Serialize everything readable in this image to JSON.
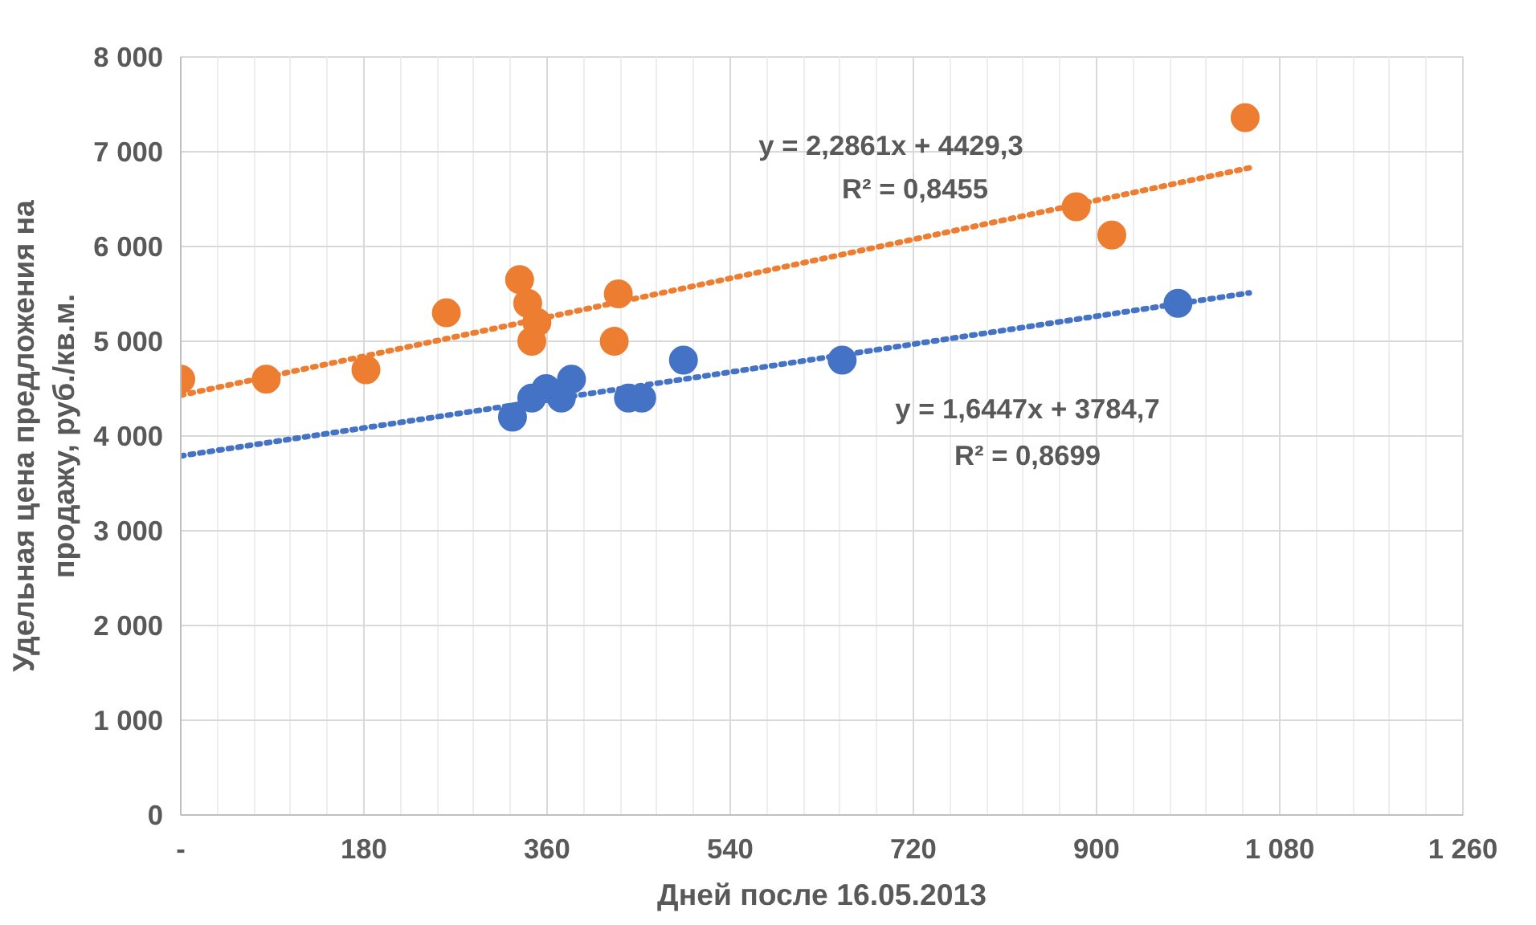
{
  "chart_data": {
    "type": "scatter",
    "xlabel": "Дней после 16.05.2013",
    "ylabel": "Удельная цена предложения на\nпродажу, руб./кв.м.",
    "xlim": [
      0,
      1260
    ],
    "ylim": [
      0,
      8000
    ],
    "xticks": [
      {
        "value": 0,
        "label": "-"
      },
      180,
      360,
      540,
      720,
      900,
      {
        "value": 1080,
        "label": "1 080"
      },
      {
        "value": 1260,
        "label": "1 260"
      }
    ],
    "yticks": [
      0,
      {
        "value": 1000,
        "label": "1 000"
      },
      {
        "value": 2000,
        "label": "2 000"
      },
      {
        "value": 3000,
        "label": "3 000"
      },
      {
        "value": 4000,
        "label": "4 000"
      },
      {
        "value": 5000,
        "label": "5 000"
      },
      {
        "value": 6000,
        "label": "6 000"
      },
      {
        "value": 7000,
        "label": "7 000"
      },
      {
        "value": 8000,
        "label": "8 000"
      }
    ],
    "grid": true,
    "marker": "circle",
    "series": [
      {
        "color": "#ed7d31",
        "x": [
          0,
          84,
          182,
          261,
          333,
          341,
          350,
          345,
          430,
          426,
          880,
          915,
          1046
        ],
        "values": [
          4600,
          4600,
          4700,
          5300,
          5650,
          5400,
          5200,
          5000,
          5500,
          5000,
          6420,
          6120,
          7360
        ]
      },
      {
        "color": "#4472c4",
        "x": [
          326,
          345,
          359,
          374,
          384,
          440,
          453,
          494,
          650,
          980
        ],
        "values": [
          4200,
          4400,
          4500,
          4400,
          4600,
          4400,
          4400,
          4800,
          4800,
          5400
        ]
      },
      {
        "type": "line",
        "line_style": "dotted",
        "marker": "none",
        "color": "#ed7d31",
        "x": [
          0,
          1050
        ],
        "values": [
          4430,
          6830
        ]
      },
      {
        "type": "line",
        "line_style": "dotted",
        "marker": "none",
        "color": "#4472c4",
        "x": [
          0,
          1050
        ],
        "values": [
          3790,
          5510
        ]
      }
    ],
    "annotations": [
      "y = 2,2861x + 4429,3",
      "R² = 0,8455",
      "y = 1,6447x + 3784,7",
      "R² = 0,8699"
    ]
  }
}
